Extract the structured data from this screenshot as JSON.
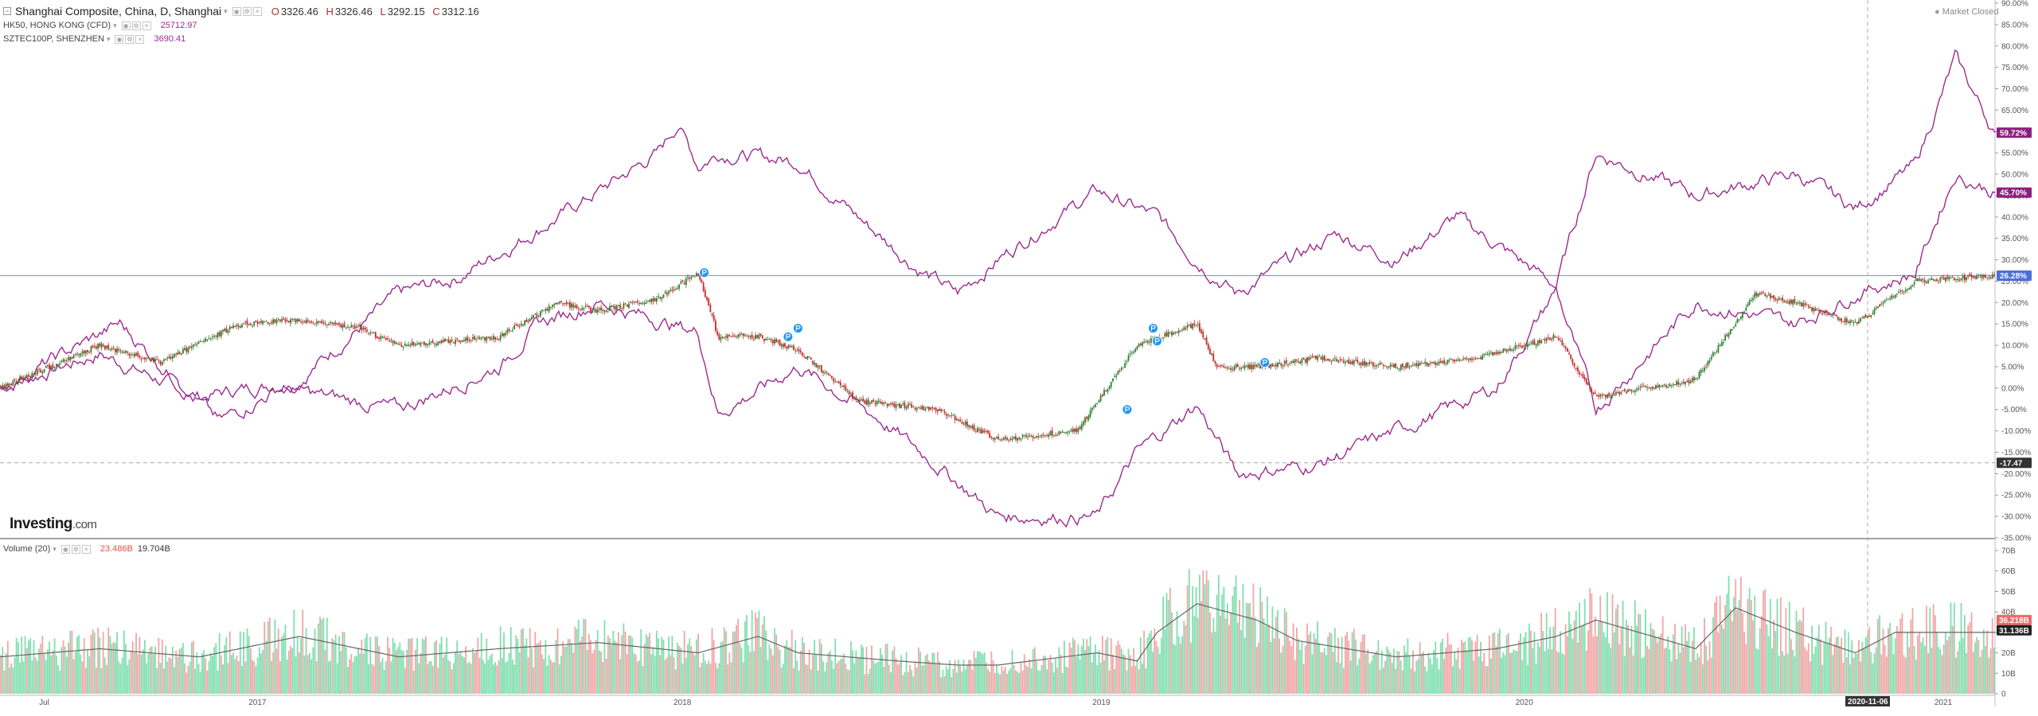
{
  "legend": {
    "main": {
      "title": "Shanghai Composite, China, D, Shanghai",
      "o_label": "O",
      "o": "3326.46",
      "h_label": "H",
      "h": "3326.46",
      "l_label": "L",
      "l": "3292.15",
      "c_label": "C",
      "c": "3312.16"
    },
    "hk50": {
      "title": "HK50, HONG KONG (CFD)",
      "value": "25712.97"
    },
    "sztec": {
      "title": "SZTEC100P, SHENZHEN",
      "value": "3690.41"
    },
    "volume": {
      "title": "Volume (20)",
      "value1": "23.486B",
      "value2": "19.704B"
    }
  },
  "market_status": "Market Closed",
  "logo": {
    "main": "Investing",
    "suffix": ".com"
  },
  "colors": {
    "background": "#ffffff",
    "up": "#2e7d32",
    "down": "#c62828",
    "compare": "#9b2c8f",
    "vol_up": "#80dfb0",
    "vol_down": "#f2a6a6",
    "ma": "#888888",
    "ref_line": "#7d8fd8",
    "event_marker": "#2196f3"
  },
  "chart_data": {
    "type": "line",
    "x_labels": [
      "Jul",
      "2017",
      "2018",
      "2019",
      "2020",
      "2021"
    ],
    "cursor_date": "2020-11-06",
    "y_axis": {
      "unit": "%",
      "range": [
        -35,
        90
      ],
      "ticks": [
        "90.00%",
        "85.00%",
        "80.00%",
        "75.00%",
        "70.00%",
        "65.00%",
        "60.00%",
        "55.00%",
        "50.00%",
        "45.00%",
        "40.00%",
        "35.00%",
        "30.00%",
        "25.00%",
        "20.00%",
        "15.00%",
        "10.00%",
        "5.00%",
        "0.00%",
        "-5.00%",
        "-10.00%",
        "-15.00%",
        "-20.00%",
        "-25.00%",
        "-30.00%",
        "-35.00%"
      ]
    },
    "last_value_badges": [
      "59.72%",
      "45.70%",
      "26.28%",
      "-17.47"
    ],
    "horizontal_ref_value": 26.28,
    "dashed_ref_value": -17.47,
    "series": [
      {
        "name": "SZTEC100P, SHENZHEN",
        "style": "line",
        "x": [
          0,
          0.05,
          0.1,
          0.15,
          0.2,
          0.23,
          0.28,
          0.3,
          0.33,
          0.34,
          0.35,
          0.36,
          0.4,
          0.43,
          0.46,
          0.48,
          0.5,
          0.53,
          0.55,
          0.58,
          0.6,
          0.62,
          0.64,
          0.67,
          0.7,
          0.73,
          0.78,
          0.8,
          0.85,
          0.9,
          0.93,
          0.96,
          0.98,
          1
        ],
        "values": [
          0,
          8,
          -2,
          2,
          22,
          26,
          40,
          46,
          55,
          62,
          52,
          55,
          53,
          40,
          28,
          22,
          30,
          40,
          46,
          40,
          30,
          22,
          28,
          36,
          30,
          40,
          24,
          55,
          45,
          50,
          42,
          52,
          77,
          59.72
        ]
      },
      {
        "name": "HK50, HONG KONG (CFD)",
        "style": "line",
        "x": [
          0,
          0.06,
          0.11,
          0.14,
          0.2,
          0.25,
          0.27,
          0.3,
          0.35,
          0.36,
          0.4,
          0.44,
          0.47,
          0.5,
          0.55,
          0.57,
          0.6,
          0.62,
          0.66,
          0.7,
          0.75,
          0.78,
          0.8,
          0.85,
          0.9,
          0.93,
          0.96,
          0.98,
          1
        ],
        "values": [
          0,
          15,
          -8,
          0,
          -5,
          5,
          15,
          20,
          13,
          -6,
          5,
          -7,
          -18,
          -30,
          -30,
          -15,
          -4,
          -20,
          -18,
          -10,
          0,
          23,
          -5,
          20,
          15,
          22,
          27,
          50,
          45.7
        ]
      },
      {
        "name": "Shanghai Composite",
        "style": "candles",
        "x": [
          0,
          0.05,
          0.08,
          0.12,
          0.15,
          0.18,
          0.2,
          0.25,
          0.28,
          0.3,
          0.33,
          0.35,
          0.36,
          0.38,
          0.4,
          0.43,
          0.47,
          0.5,
          0.54,
          0.57,
          0.6,
          0.61,
          0.63,
          0.66,
          0.7,
          0.74,
          0.78,
          0.8,
          0.85,
          0.88,
          0.9,
          0.93,
          0.96,
          1
        ],
        "values": [
          0,
          10,
          6,
          15,
          16,
          14,
          10,
          12,
          20,
          18,
          21,
          27,
          12,
          12,
          9,
          -3,
          -5,
          -12,
          -10,
          10,
          15,
          5,
          5,
          7,
          5,
          7,
          12,
          -2,
          2,
          22,
          20,
          15,
          25,
          26.28
        ]
      }
    ],
    "event_markers": [
      {
        "x": 0.353,
        "y": 27
      },
      {
        "x": 0.4,
        "y": 14
      },
      {
        "x": 0.395,
        "y": 12
      },
      {
        "x": 0.565,
        "y": -5
      },
      {
        "x": 0.578,
        "y": 14
      },
      {
        "x": 0.58,
        "y": 11
      },
      {
        "x": 0.634,
        "y": 6
      }
    ],
    "volume": {
      "y_ticks": [
        "70B",
        "60B",
        "50B",
        "40B",
        "30B",
        "20B",
        "10B",
        "0"
      ],
      "range": [
        0,
        70
      ],
      "last_value_badges": [
        "36.218B",
        "31.136B"
      ],
      "ma_x": [
        0,
        0.05,
        0.1,
        0.15,
        0.2,
        0.25,
        0.3,
        0.35,
        0.38,
        0.4,
        0.45,
        0.48,
        0.5,
        0.55,
        0.57,
        0.58,
        0.6,
        0.63,
        0.65,
        0.7,
        0.75,
        0.78,
        0.8,
        0.85,
        0.87,
        0.9,
        0.93,
        0.95,
        0.97,
        1
      ],
      "ma_values": [
        18,
        22,
        18,
        28,
        18,
        22,
        25,
        20,
        28,
        20,
        16,
        14,
        14,
        20,
        16,
        30,
        44,
        36,
        26,
        18,
        22,
        28,
        36,
        22,
        42,
        30,
        20,
        30,
        30,
        30
      ]
    }
  }
}
